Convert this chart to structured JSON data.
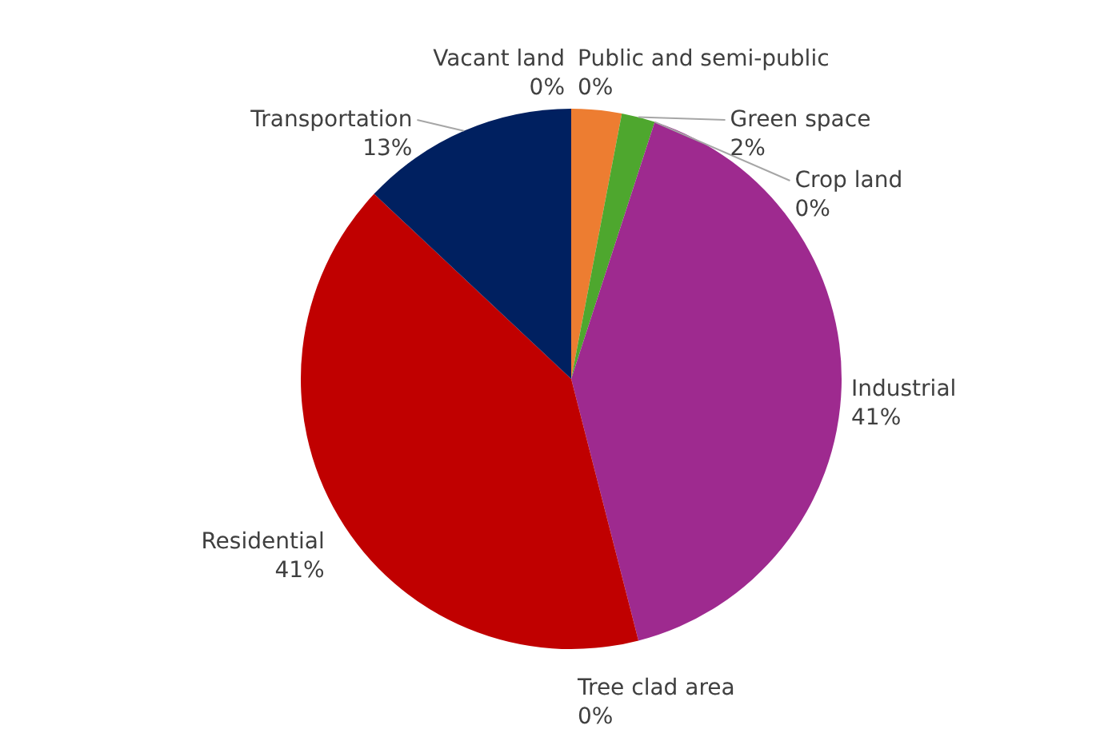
{
  "chart_data": {
    "type": "pie",
    "categories": [
      null,
      "Green space",
      "Crop land",
      "Industrial",
      "Tree clad area",
      "Residential",
      "Transportation",
      "Vacant land",
      "Public and semi-public"
    ],
    "values": [
      3,
      2,
      0,
      41,
      0,
      41,
      13,
      0,
      0
    ],
    "value_labels": [
      null,
      "2%",
      "0%",
      "41%",
      "0%",
      "41%",
      "13%",
      "0%",
      "0%"
    ],
    "colors": [
      "#ed7d31",
      "#4ea72e",
      "#ffc000",
      "#9e2a8f",
      "#7f7f7f",
      "#c00000",
      "#002060",
      "#00b0f0",
      "#92d050"
    ]
  }
}
